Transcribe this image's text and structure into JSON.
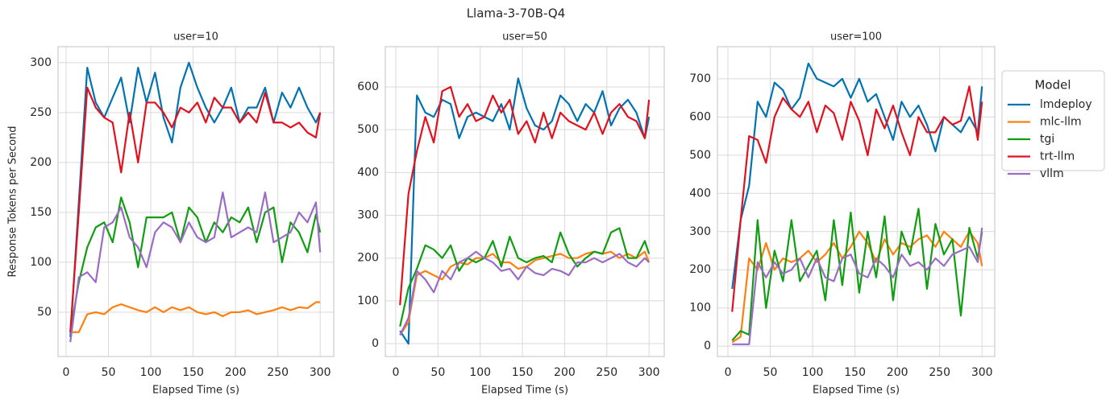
{
  "title": "Llama-3-70B-Q4",
  "legend_title": "Model",
  "chart_data": [
    {
      "type": "line",
      "title": "user=10",
      "xlabel": "Elapsed Time (s)",
      "ylabel": "Response Tokens per Second",
      "x": [
        5,
        15,
        25,
        35,
        45,
        55,
        65,
        75,
        85,
        95,
        105,
        115,
        125,
        135,
        145,
        155,
        165,
        175,
        185,
        195,
        205,
        215,
        225,
        235,
        245,
        255,
        265,
        275,
        285,
        295,
        300
      ],
      "series": [
        {
          "name": "lmdeploy",
          "color": "#0173b2",
          "values": [
            25,
            160,
            295,
            260,
            245,
            265,
            285,
            240,
            295,
            260,
            290,
            245,
            220,
            275,
            300,
            275,
            255,
            240,
            255,
            275,
            240,
            255,
            255,
            275,
            240,
            270,
            255,
            275,
            255,
            240,
            250
          ]
        },
        {
          "name": "mlc-llm",
          "color": "#ff7f0e",
          "values": [
            30,
            30,
            48,
            50,
            48,
            55,
            58,
            55,
            52,
            50,
            55,
            50,
            55,
            52,
            55,
            50,
            48,
            50,
            46,
            50,
            50,
            52,
            48,
            50,
            52,
            55,
            52,
            55,
            54,
            60,
            60
          ]
        },
        {
          "name": "tgi",
          "color": "#109e10",
          "values": [
            30,
            80,
            115,
            135,
            140,
            120,
            165,
            140,
            95,
            145,
            145,
            145,
            150,
            120,
            155,
            145,
            120,
            140,
            130,
            145,
            140,
            155,
            120,
            150,
            155,
            100,
            140,
            130,
            110,
            148,
            130
          ]
        },
        {
          "name": "trt-llm",
          "color": "#e3101e",
          "values": [
            30,
            150,
            275,
            255,
            245,
            240,
            190,
            250,
            200,
            260,
            260,
            250,
            235,
            255,
            250,
            260,
            240,
            265,
            255,
            255,
            240,
            250,
            240,
            270,
            240,
            240,
            235,
            240,
            230,
            225,
            250
          ]
        },
        {
          "name": "vllm",
          "color": "#9b6cc4",
          "values": [
            20,
            85,
            90,
            80,
            135,
            140,
            155,
            125,
            115,
            95,
            130,
            140,
            135,
            120,
            140,
            125,
            120,
            125,
            170,
            125,
            130,
            135,
            130,
            170,
            120,
            125,
            130,
            150,
            140,
            160,
            110
          ]
        }
      ],
      "xlim": [
        -9.5,
        316
      ],
      "ylim": [
        5.6,
        316
      ],
      "xticks": [
        0,
        50,
        100,
        150,
        200,
        250,
        300
      ],
      "yticks": [
        50,
        100,
        150,
        200,
        250,
        300
      ],
      "grid": true
    },
    {
      "type": "line",
      "title": "user=50",
      "xlabel": "Elapsed Time (s)",
      "x": [
        5,
        15,
        25,
        35,
        45,
        55,
        65,
        75,
        85,
        95,
        105,
        115,
        125,
        135,
        145,
        155,
        165,
        175,
        185,
        195,
        205,
        215,
        225,
        235,
        245,
        255,
        265,
        275,
        285,
        295,
        300
      ],
      "series": [
        {
          "name": "lmdeploy",
          "color": "#0173b2",
          "values": [
            30,
            0,
            580,
            540,
            530,
            570,
            560,
            480,
            530,
            540,
            530,
            520,
            560,
            500,
            620,
            550,
            510,
            500,
            520,
            580,
            560,
            520,
            560,
            540,
            590,
            510,
            550,
            570,
            540,
            480,
            530
          ]
        },
        {
          "name": "mlc-llm",
          "color": "#ff7f0e",
          "values": [
            20,
            50,
            160,
            170,
            160,
            150,
            180,
            190,
            185,
            200,
            200,
            210,
            190,
            190,
            175,
            180,
            195,
            200,
            205,
            210,
            200,
            200,
            210,
            215,
            210,
            215,
            200,
            210,
            200,
            215,
            190
          ]
        },
        {
          "name": "tgi",
          "color": "#109e10",
          "values": [
            40,
            130,
            175,
            230,
            220,
            200,
            230,
            170,
            200,
            190,
            200,
            240,
            180,
            250,
            200,
            190,
            200,
            205,
            190,
            260,
            210,
            180,
            200,
            215,
            210,
            260,
            270,
            200,
            200,
            240,
            210
          ]
        },
        {
          "name": "trt-llm",
          "color": "#e3101e",
          "values": [
            90,
            350,
            450,
            530,
            470,
            590,
            600,
            530,
            560,
            520,
            530,
            580,
            540,
            570,
            490,
            520,
            470,
            540,
            480,
            540,
            520,
            510,
            500,
            540,
            490,
            540,
            560,
            530,
            520,
            480,
            570
          ]
        },
        {
          "name": "vllm",
          "color": "#9b6cc4",
          "values": [
            20,
            60,
            170,
            150,
            120,
            170,
            150,
            190,
            200,
            215,
            200,
            190,
            170,
            175,
            150,
            180,
            165,
            160,
            175,
            170,
            160,
            190,
            190,
            200,
            190,
            200,
            210,
            190,
            180,
            200,
            190
          ]
        }
      ],
      "xlim": [
        -12.4,
        318
      ],
      "ylim": [
        -30,
        694
      ],
      "xticks": [
        0,
        50,
        100,
        150,
        200,
        250,
        300
      ],
      "yticks": [
        0,
        100,
        200,
        300,
        400,
        500,
        600
      ],
      "grid": true
    },
    {
      "type": "line",
      "title": "user=100",
      "xlabel": "Elapsed Time (s)",
      "x": [
        5,
        15,
        25,
        35,
        45,
        55,
        65,
        75,
        85,
        95,
        105,
        115,
        125,
        135,
        145,
        155,
        165,
        175,
        185,
        195,
        205,
        215,
        225,
        235,
        245,
        255,
        265,
        275,
        285,
        295,
        300
      ],
      "series": [
        {
          "name": "lmdeploy",
          "color": "#0173b2",
          "values": [
            150,
            330,
            420,
            640,
            600,
            690,
            670,
            620,
            650,
            740,
            700,
            690,
            680,
            700,
            650,
            700,
            640,
            660,
            600,
            540,
            640,
            600,
            630,
            580,
            510,
            600,
            580,
            560,
            600,
            560,
            680
          ]
        },
        {
          "name": "mlc-llm",
          "color": "#ff7f0e",
          "values": [
            10,
            25,
            230,
            200,
            270,
            200,
            230,
            220,
            230,
            250,
            220,
            240,
            270,
            230,
            260,
            300,
            270,
            220,
            280,
            240,
            270,
            260,
            280,
            290,
            260,
            300,
            280,
            260,
            300,
            270,
            210
          ]
        },
        {
          "name": "tgi",
          "color": "#109e10",
          "values": [
            15,
            40,
            30,
            330,
            100,
            250,
            170,
            330,
            170,
            210,
            250,
            120,
            330,
            160,
            350,
            140,
            300,
            180,
            340,
            120,
            300,
            240,
            360,
            150,
            320,
            240,
            280,
            80,
            310,
            230,
            300
          ]
        },
        {
          "name": "trt-llm",
          "color": "#e3101e",
          "values": [
            90,
            330,
            550,
            540,
            480,
            600,
            650,
            620,
            600,
            640,
            560,
            630,
            610,
            540,
            640,
            590,
            500,
            620,
            570,
            630,
            560,
            500,
            600,
            560,
            560,
            600,
            580,
            590,
            680,
            540,
            640
          ]
        },
        {
          "name": "vllm",
          "color": "#9b6cc4",
          "values": [
            5,
            5,
            5,
            220,
            180,
            220,
            190,
            200,
            230,
            180,
            230,
            180,
            170,
            230,
            240,
            190,
            180,
            230,
            210,
            180,
            240,
            210,
            220,
            200,
            230,
            210,
            240,
            250,
            260,
            220,
            310
          ]
        }
      ],
      "xlim": [
        -12.4,
        315
      ],
      "ylim": [
        -27,
        784
      ],
      "xticks": [
        0,
        50,
        100,
        150,
        200,
        250,
        300
      ],
      "yticks": [
        0,
        100,
        200,
        300,
        400,
        500,
        600,
        700
      ],
      "grid": true
    }
  ]
}
